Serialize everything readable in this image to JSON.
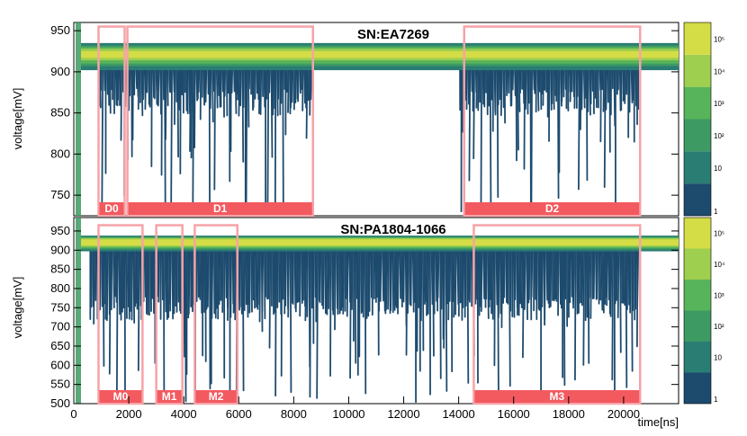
{
  "chart_data": [
    {
      "type": "heatmap",
      "title": "SN:EA7269",
      "xlabel": "",
      "ylabel": "voltage[mV]",
      "xlim": [
        0,
        22000
      ],
      "ylim": [
        725,
        960
      ],
      "yticks": [
        750,
        800,
        850,
        900,
        950
      ],
      "baseline_mV": 925,
      "baseline_band_mV": [
        910,
        932
      ],
      "noise_floor_mV": 880,
      "noise_region_x": [
        900,
        20600
      ],
      "quiet_gap_x": [
        8700,
        14000
      ],
      "regions": [
        {
          "label": "D0",
          "x": [
            900,
            1850
          ],
          "y": [
            725,
            955
          ]
        },
        {
          "label": "D1",
          "x": [
            1950,
            8700
          ],
          "y": [
            725,
            955
          ]
        },
        {
          "label": "D2",
          "x": [
            14200,
            20600
          ],
          "y": [
            725,
            955
          ]
        }
      ],
      "colorbar": {
        "levels": [
          "1",
          "10",
          "10²",
          "10³",
          "10⁴",
          "10⁵"
        ]
      }
    },
    {
      "type": "heatmap",
      "title": "SN:PA1804-1066",
      "xlabel": "time[ns]",
      "ylabel": "voltage[mV]",
      "xlim": [
        0,
        22000
      ],
      "ylim": [
        500,
        985
      ],
      "xticks": [
        0,
        2000,
        4000,
        6000,
        8000,
        10000,
        12000,
        14000,
        16000,
        18000,
        20000
      ],
      "yticks": [
        500,
        550,
        600,
        650,
        700,
        750,
        800,
        850,
        900,
        950
      ],
      "baseline_mV": 925,
      "baseline_band_mV": [
        905,
        935
      ],
      "noise_floor_mV": 780,
      "noise_region_x": [
        600,
        20600
      ],
      "regions": [
        {
          "label": "M0",
          "x": [
            900,
            2500
          ],
          "y": [
            500,
            965
          ]
        },
        {
          "label": "M1",
          "x": [
            3000,
            3950
          ],
          "y": [
            500,
            965
          ]
        },
        {
          "label": "M2",
          "x": [
            4400,
            5950
          ],
          "y": [
            500,
            965
          ]
        },
        {
          "label": "M3",
          "x": [
            14550,
            20600
          ],
          "y": [
            500,
            965
          ]
        }
      ],
      "colorbar": {
        "levels": [
          "1",
          "10",
          "10²",
          "10³",
          "10⁴",
          "10⁵"
        ]
      }
    }
  ],
  "colors": {
    "density_low": "#1d4b6e",
    "density_mid1": "#2a7d73",
    "density_mid2": "#3d9a62",
    "density_mid3": "#58b45a",
    "density_high1": "#9fcf4e",
    "density_high2": "#d4dc46",
    "region_box": "#f6a3a8",
    "region_label_bg": "#f25a5f"
  }
}
